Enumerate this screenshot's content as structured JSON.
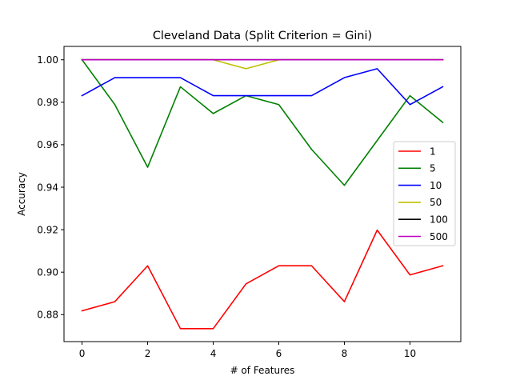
{
  "chart_data": {
    "type": "line",
    "title": "Cleveland Data (Split Criterion = Gini)",
    "xlabel": "# of Features",
    "ylabel": "Accuracy",
    "x": [
      0,
      1,
      2,
      3,
      4,
      5,
      6,
      7,
      8,
      9,
      10,
      11
    ],
    "xlim": [
      -0.55,
      11.55
    ],
    "ylim": [
      0.8673,
      1.0063
    ],
    "xticks": [
      0,
      2,
      4,
      6,
      8,
      10
    ],
    "xtick_labels": [
      "0",
      "2",
      "4",
      "6",
      "8",
      "10"
    ],
    "yticks": [
      0.88,
      0.9,
      0.92,
      0.94,
      0.96,
      0.98,
      1.0
    ],
    "ytick_labels": [
      "0.88",
      "0.90",
      "0.92",
      "0.94",
      "0.96",
      "0.98",
      "1.00"
    ],
    "grid": false,
    "legend_position": "center-right",
    "series": [
      {
        "name": "1",
        "color": "#ff0000",
        "values": [
          0.8818,
          0.8861,
          0.903,
          0.8734,
          0.8734,
          0.8945,
          0.903,
          0.903,
          0.8861,
          0.9198,
          0.8987,
          0.903
        ]
      },
      {
        "name": "5",
        "color": "#008000",
        "values": [
          1.0,
          0.9789,
          0.9494,
          0.9873,
          0.9747,
          0.9831,
          0.9789,
          0.9578,
          0.9409,
          0.962,
          0.9831,
          0.9705
        ]
      },
      {
        "name": "10",
        "color": "#0000ff",
        "values": [
          0.9831,
          0.9916,
          0.9916,
          0.9916,
          0.9831,
          0.9831,
          0.9831,
          0.9831,
          0.9916,
          0.9958,
          0.9789,
          0.9873
        ]
      },
      {
        "name": "50",
        "color": "#bfbf00",
        "values": [
          1.0,
          1.0,
          1.0,
          1.0,
          1.0,
          0.9958,
          1.0,
          1.0,
          1.0,
          1.0,
          1.0,
          1.0
        ]
      },
      {
        "name": "100",
        "color": "#000000",
        "values": [
          1.0,
          1.0,
          1.0,
          1.0,
          1.0,
          1.0,
          1.0,
          1.0,
          1.0,
          1.0,
          1.0,
          1.0
        ]
      },
      {
        "name": "500",
        "color": "#bf00bf",
        "values": [
          1.0,
          1.0,
          1.0,
          1.0,
          1.0,
          1.0,
          1.0,
          1.0,
          1.0,
          1.0,
          1.0,
          1.0
        ]
      }
    ]
  }
}
